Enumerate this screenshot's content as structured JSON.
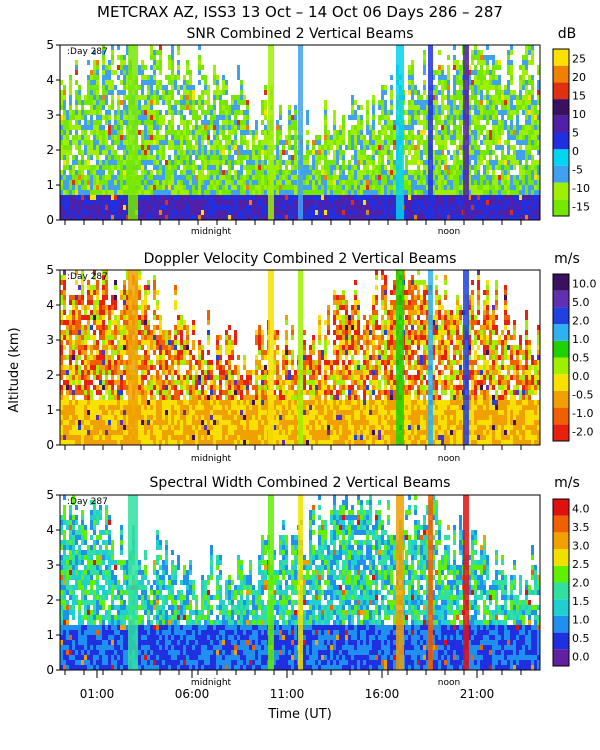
{
  "figure": {
    "suptitle": "METCRAX AZ, ISS3  13 Oct – 14 Oct 06 Days 286 – 287",
    "ylabel": "Altitude (km)",
    "xlabel": "Time (UT)",
    "day_marker": ":Day 287"
  },
  "chart_data": [
    {
      "type": "heatmap",
      "title": "SNR Combined 2 Vertical Beams",
      "unit": "dB",
      "colorbar_ticks": [
        "25",
        "20",
        "15",
        "10",
        "5",
        "0",
        "-5",
        "-10",
        "-15"
      ],
      "colorbar_colors": [
        "#76e800",
        "#9ff000",
        "#42a0f0",
        "#00d4f0",
        "#2030e0",
        "#5020a8",
        "#3a1060",
        "#e03010",
        "#f08000",
        "#ffe000"
      ],
      "ylim": [
        0,
        5
      ],
      "yticks": [
        "0",
        "1",
        "2",
        "3",
        "4",
        "5"
      ],
      "x_inner_labels": [
        "midnight",
        "noon"
      ]
    },
    {
      "type": "heatmap",
      "title": "Doppler Velocity Combined 2 Vertical Beams",
      "unit": "m/s",
      "colorbar_ticks": [
        "10.0",
        "5.0",
        "2.0",
        "1.0",
        "0.5",
        "0.0",
        "-0.5",
        "-1.0",
        "-2.0"
      ],
      "colorbar_colors": [
        "#e82010",
        "#f06000",
        "#f0a000",
        "#f8e000",
        "#9ff000",
        "#20d000",
        "#30b0f0",
        "#2040e0",
        "#6030b0",
        "#3a1060"
      ],
      "ylim": [
        0,
        5
      ],
      "yticks": [
        "0",
        "1",
        "2",
        "3",
        "4",
        "5"
      ],
      "x_inner_labels": [
        "midnight",
        "noon"
      ]
    },
    {
      "type": "heatmap",
      "title": "Spectral Width Combined 2 Vertical Beams",
      "unit": "m/s",
      "colorbar_ticks": [
        "4.0",
        "3.5",
        "3.0",
        "2.5",
        "2.0",
        "1.5",
        "1.0",
        "0.5",
        "0.0"
      ],
      "colorbar_colors": [
        "#6020a0",
        "#2030e0",
        "#2090f0",
        "#20d0d0",
        "#30e0a0",
        "#60f000",
        "#f0e000",
        "#f0a000",
        "#f06000",
        "#e01010"
      ],
      "ylim": [
        0,
        5
      ],
      "yticks": [
        "0",
        "1",
        "2",
        "3",
        "4",
        "5"
      ],
      "x_inner_labels": [
        "midnight",
        "noon"
      ],
      "x_tick_labels": [
        "01:00",
        "06:00",
        "11:00",
        "16:00",
        "21:00"
      ]
    }
  ]
}
